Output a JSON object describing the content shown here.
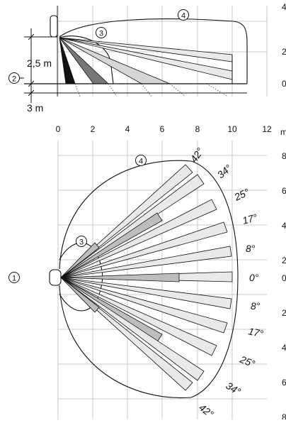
{
  "side_view": {
    "x_axis_ticks": [
      "0",
      "2",
      "4",
      "6",
      "8",
      "10",
      "12"
    ],
    "right_clipped_ticks": [
      "4",
      "2",
      "0"
    ],
    "dimension_labels": {
      "height": "2,5 m",
      "depth": "3 m"
    },
    "markers": {
      "floor": "2",
      "large_zone": "4",
      "small_zone": "3"
    }
  },
  "top_view": {
    "right_clipped_ticks": [
      "m",
      "8",
      "6",
      "4",
      "2",
      "0",
      "2",
      "4",
      "6",
      "8"
    ],
    "markers": {
      "sensor": "1",
      "small_zone": "3",
      "large_zone": "4"
    },
    "beam_angles": {
      "up_42": "42°",
      "up_34": "34°",
      "up_25": "25°",
      "up_17": "17°",
      "up_8": "8°",
      "center": "0°",
      "down_8": "8°",
      "down_17": "17°",
      "down_25": "25°",
      "down_34": "34°",
      "down_42": "42°"
    }
  },
  "colors": {
    "beam_light": "#e9e9e9",
    "beam_mid": "#bdbdbd",
    "beam_dark": "#777777",
    "beam_black": "#111111",
    "grid": "#c8c8c8",
    "line": "#111111"
  }
}
